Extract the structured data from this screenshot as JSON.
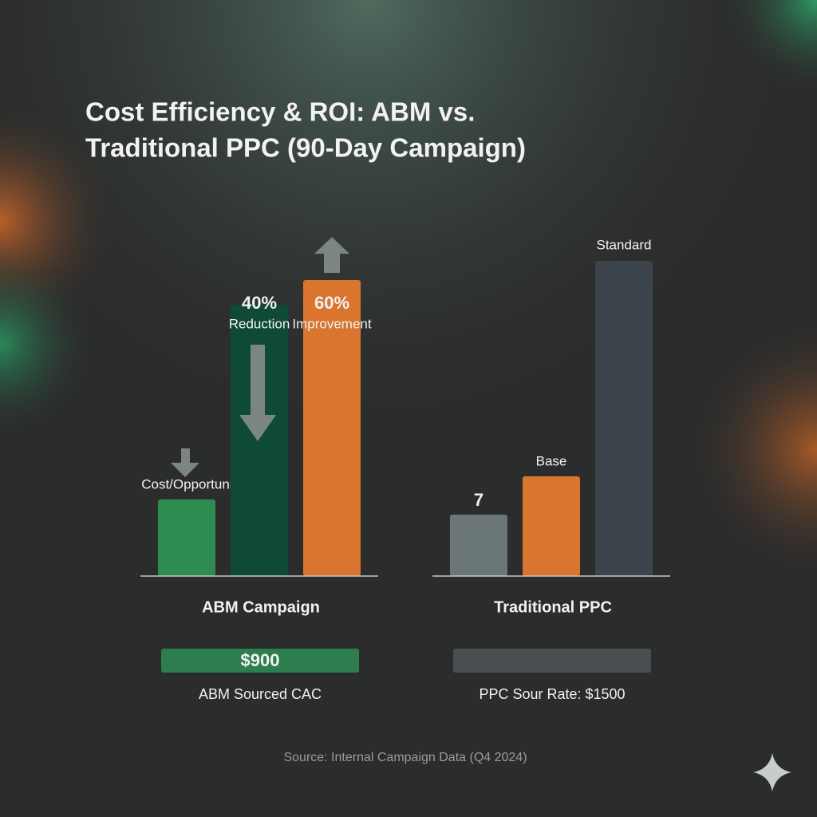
{
  "title": [
    "Cost Efficiency & ROI: ABM vs.",
    "Traditional PPC (90-Day Campaign)"
  ],
  "chart_data": [
    {
      "type": "bar",
      "xlabel": "ABM Campaign",
      "ylim": [
        0,
        400
      ],
      "values": [
        96,
        340,
        371
      ],
      "colors": [
        "#2e8b52",
        "#0f4a38",
        "#d9752f"
      ],
      "annotations": [
        [
          "Cost/Opportunity"
        ],
        [
          "40%",
          "Reduction"
        ],
        [
          "60%",
          "Improvement"
        ]
      ],
      "summary": {
        "text": "$900",
        "note": "ABM Sourced CAC",
        "color": "#2e7d4f"
      }
    },
    {
      "type": "bar",
      "xlabel": "Traditional PPC",
      "ylim": [
        0,
        400
      ],
      "values": [
        77,
        125,
        395
      ],
      "colors": [
        "#6b7676",
        "#d9752f",
        "#3c454c"
      ],
      "annotations": [
        [
          "7"
        ],
        [
          "Base"
        ],
        [
          "Standard"
        ]
      ],
      "summary": {
        "note": "PPC Sour Rate: $1500",
        "color": "#4a5052"
      }
    }
  ],
  "source": "Source: Internal Campaign Data (Q4 2024)"
}
